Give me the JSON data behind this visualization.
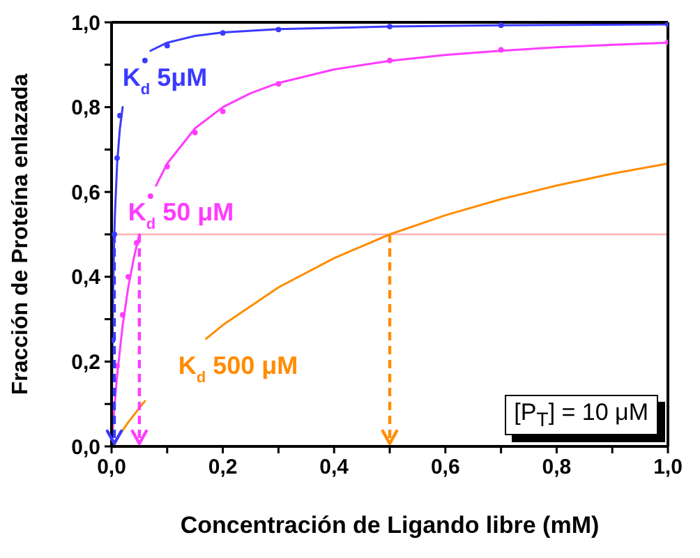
{
  "chart_data": {
    "type": "line",
    "xlabel": "Concentración de Ligando libre (mM)",
    "ylabel": "Fracción de Proteína enlazada",
    "xlim": [
      0,
      1
    ],
    "ylim": [
      0,
      1
    ],
    "xticks": [
      {
        "value": 0,
        "label": "0,0"
      },
      {
        "value": 0.1,
        "label": null
      },
      {
        "value": 0.2,
        "label": "0,2"
      },
      {
        "value": 0.3,
        "label": null
      },
      {
        "value": 0.4,
        "label": "0,4"
      },
      {
        "value": 0.5,
        "label": null
      },
      {
        "value": 0.6,
        "label": "0,6"
      },
      {
        "value": 0.7,
        "label": null
      },
      {
        "value": 0.8,
        "label": "0,8"
      },
      {
        "value": 0.9,
        "label": null
      },
      {
        "value": 1,
        "label": "1,0"
      }
    ],
    "yticks": [
      {
        "value": 0,
        "label": "0,0"
      },
      {
        "value": 0.1,
        "label": null
      },
      {
        "value": 0.2,
        "label": "0,2"
      },
      {
        "value": 0.3,
        "label": null
      },
      {
        "value": 0.4,
        "label": "0,4"
      },
      {
        "value": 0.5,
        "label": null
      },
      {
        "value": 0.6,
        "label": "0,6"
      },
      {
        "value": 0.7,
        "label": null
      },
      {
        "value": 0.8,
        "label": "0,8"
      },
      {
        "value": 0.9,
        "label": null
      },
      {
        "value": 1,
        "label": "1,0"
      }
    ],
    "series": [
      {
        "name": "K$_{d}$ 5μM",
        "color": "#3a3aff",
        "x": [
          0,
          0.001,
          0.002,
          0.004,
          0.005,
          0.006,
          0.01,
          0.015,
          0.02,
          0.045,
          0.07,
          0.1,
          0.15,
          0.2,
          0.3,
          0.5,
          0.7,
          1.0
        ],
        "values": [
          0,
          0.167,
          0.286,
          0.444,
          0.5,
          0.545,
          0.667,
          0.75,
          0.8,
          null,
          0.933,
          0.952,
          0.968,
          0.976,
          0.984,
          0.99,
          0.993,
          0.995
        ]
      },
      {
        "name": "K$_{d}$ 50 μM",
        "color": "#ff3cff",
        "x": [
          0,
          0.005,
          0.01,
          0.02,
          0.03,
          0.04,
          0.05,
          0.065,
          0.08,
          0.1,
          0.15,
          0.2,
          0.25,
          0.3,
          0.4,
          0.5,
          0.6,
          0.7,
          0.8,
          0.9,
          1.0
        ],
        "values": [
          0,
          0.091,
          0.167,
          0.286,
          0.375,
          0.444,
          0.5,
          null,
          0.615,
          0.667,
          0.75,
          0.8,
          0.833,
          0.857,
          0.889,
          0.909,
          0.923,
          0.933,
          0.941,
          0.947,
          0.952
        ]
      },
      {
        "name": "K$_{d}$ 500 μM",
        "color": "#ff8c00",
        "x": [
          0,
          0.03,
          0.06,
          0.12,
          0.17,
          0.2,
          0.3,
          0.4,
          0.5,
          0.6,
          0.7,
          0.8,
          0.9,
          1.0
        ],
        "values": [
          0,
          0.057,
          0.107,
          null,
          0.254,
          0.286,
          0.375,
          0.444,
          0.5,
          0.545,
          0.583,
          0.615,
          0.643,
          0.667
        ]
      },
      {
        "type": "scatter",
        "marker": "circle",
        "color": "#3a3aff",
        "x": [
          0.002,
          0.005,
          0.01,
          0.015,
          0.06,
          0.1,
          0.2,
          0.3,
          0.5,
          0.7,
          1.0
        ],
        "values": [
          0.25,
          0.5,
          0.68,
          0.78,
          0.91,
          0.945,
          0.975,
          0.983,
          0.99,
          0.993,
          0.995
        ]
      },
      {
        "type": "scatter",
        "marker": "circle",
        "color": "#ff3cff",
        "x": [
          0.01,
          0.02,
          0.03,
          0.045,
          0.07,
          0.1,
          0.15,
          0.2,
          0.3,
          0.5,
          0.7,
          1.0
        ],
        "values": [
          0.19,
          0.31,
          0.4,
          0.48,
          0.59,
          0.66,
          0.74,
          0.79,
          0.855,
          0.91,
          0.935,
          0.953
        ]
      }
    ],
    "ref_lines": [
      {
        "axis": "y",
        "value": 0.5,
        "color": "#ffb0b0"
      }
    ],
    "annotations": [
      "[P$_{T}$] = 10 μM"
    ]
  }
}
